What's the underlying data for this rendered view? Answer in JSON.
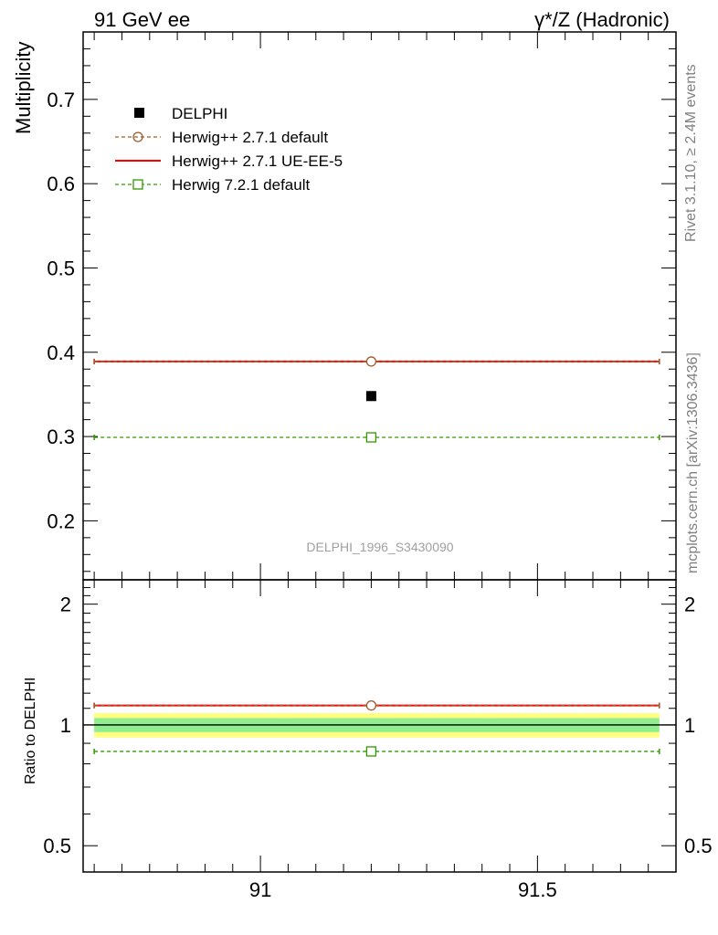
{
  "chart_data": [
    {
      "type": "scatter",
      "panel": "main",
      "header_left": "91 GeV ee",
      "header_right": "γ*/Z (Hadronic)",
      "ylabel": "Multiplicity",
      "xlim": [
        90.68,
        91.75
      ],
      "ylim": [
        0.13,
        0.78
      ],
      "yticks": [
        0.2,
        0.3,
        0.4,
        0.5,
        0.6,
        0.7
      ],
      "ytick_labels": [
        "0.2",
        "0.3",
        "0.4",
        "0.5",
        "0.6",
        "0.7"
      ],
      "analysis_label": "DELPHI_1996_S3430090",
      "side_text_top": "Rivet 3.1.10, ≥ 2.4M events",
      "side_text_bottom": "mcplots.cern.ch [arXiv:1306.3436]",
      "legend_position": "top-left",
      "series": [
        {
          "name": "DELPHI",
          "style": "data",
          "color": "#000000",
          "x": [
            91.2
          ],
          "xmin": [
            91.2
          ],
          "xmax": [
            91.2
          ],
          "y": [
            0.348
          ]
        },
        {
          "name": "Herwig++ 2.7.1 default",
          "style": "dashed-circle",
          "color": "#a05a2c",
          "x": [
            91.2
          ],
          "xmin": [
            90.7
          ],
          "xmax": [
            91.72
          ],
          "y": [
            0.389
          ]
        },
        {
          "name": "Herwig++ 2.7.1 UE-EE-5",
          "style": "solid",
          "color": "#ff0000",
          "x": [
            91.2
          ],
          "xmin": [
            90.7
          ],
          "xmax": [
            91.72
          ],
          "y": [
            0.389
          ]
        },
        {
          "name": "Herwig 7.2.1 default",
          "style": "dashed-square",
          "color": "#339900",
          "x": [
            91.2
          ],
          "xmin": [
            90.7
          ],
          "xmax": [
            91.72
          ],
          "y": [
            0.299
          ]
        }
      ]
    },
    {
      "type": "scatter",
      "panel": "ratio",
      "ylabel": "Ratio to DELPHI",
      "xlim": [
        90.68,
        91.75
      ],
      "yscale": "log",
      "ylim": [
        0.43,
        2.3
      ],
      "yticks": [
        0.5,
        1,
        2
      ],
      "ytick_labels": [
        "0.5",
        "1",
        "2"
      ],
      "xticks": [
        91,
        91.5
      ],
      "xtick_labels": [
        "91",
        "91.5"
      ],
      "bands": [
        {
          "color": "#ffff80",
          "low": 0.93,
          "high": 1.07
        },
        {
          "color": "#90ee90",
          "low": 0.96,
          "high": 1.04
        }
      ],
      "series": [
        {
          "name": "Herwig++ 2.7.1 default",
          "style": "dashed-circle",
          "color": "#a05a2c",
          "x": [
            91.2
          ],
          "xmin": [
            90.7
          ],
          "xmax": [
            91.72
          ],
          "y": [
            1.118
          ]
        },
        {
          "name": "Herwig++ 2.7.1 UE-EE-5",
          "style": "solid",
          "color": "#ff0000",
          "x": [
            91.2
          ],
          "xmin": [
            90.7
          ],
          "xmax": [
            91.72
          ],
          "y": [
            1.118
          ]
        },
        {
          "name": "Herwig 7.2.1 default",
          "style": "dashed-square",
          "color": "#339900",
          "x": [
            91.2
          ],
          "xmin": [
            90.7
          ],
          "xmax": [
            91.72
          ],
          "y": [
            0.859
          ]
        }
      ]
    }
  ]
}
